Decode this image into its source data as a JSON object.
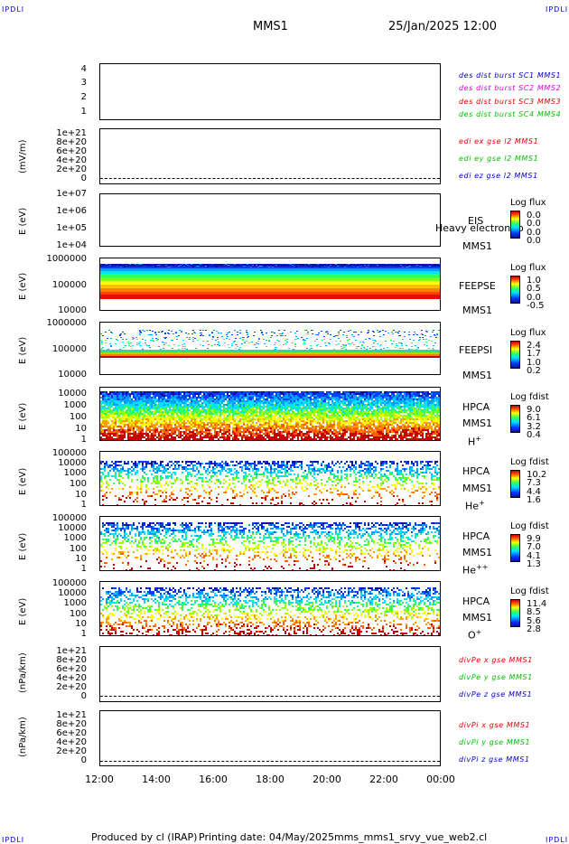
{
  "header": {
    "corner_tl": "IPDLI",
    "corner_tr": "IPDLI",
    "corner_bl": "IPDLI",
    "corner_br": "IPDLI",
    "spacecraft": "MMS1",
    "datetime": "25/Jan/2025 12:00"
  },
  "footer": {
    "produced_by": "Produced by cl (IRAP)",
    "printing_date": "Printing date: 04/May/2025",
    "script": "mms_mms1_srvy_vue_web2.cl"
  },
  "colors": {
    "blue": "#0000c8",
    "magenta": "#e000e0",
    "red": "#e00000",
    "green": "#00c000"
  },
  "chart_data": [
    {
      "type": "line",
      "panel": "burst",
      "ylabel": "",
      "yticks": [
        "4",
        "3",
        "2",
        "1"
      ],
      "ylim": [
        0.5,
        4.3
      ],
      "series": [
        {
          "name": "des dist burst SC1 MMS1",
          "values": []
        },
        {
          "name": "des dist burst SC2 MMS2",
          "values": []
        },
        {
          "name": "des dist burst SC3 MMS3",
          "values": []
        },
        {
          "name": "des dist burst SC4 MMS4",
          "values": []
        }
      ]
    },
    {
      "type": "line",
      "panel": "edi",
      "ylabel": "(mV/m)",
      "yticks": [
        "1e+21",
        "8e+20",
        "6e+20",
        "4e+20",
        "2e+20",
        "0"
      ],
      "series": [
        {
          "name": "edi ex gse l2 MMS1",
          "values": []
        },
        {
          "name": "edi ey gse l2 MMS1",
          "values": []
        },
        {
          "name": "edi ez gse l2 MMS1",
          "values": []
        }
      ]
    },
    {
      "type": "heatmap",
      "panel": "eis",
      "ylabel": "E (eV)",
      "yticks": [
        "1e+07",
        "1e+06",
        "1e+05",
        "1e+04"
      ],
      "labels": [
        "EIS",
        "Heavy electron to",
        "MMS1"
      ],
      "colorbar": {
        "title": "Log flux",
        "ticks": [
          "0.0",
          "0.0",
          "0.0",
          "0.0"
        ]
      }
    },
    {
      "type": "heatmap",
      "panel": "feepse",
      "ylabel": "E (eV)",
      "yticks": [
        "1000000",
        "100000",
        "10000"
      ],
      "labels": [
        "FEEPSE",
        "MMS1"
      ],
      "colorbar": {
        "title": "Log flux",
        "ticks": [
          "1.0",
          "0.5",
          "0.0",
          "-0.5"
        ]
      }
    },
    {
      "type": "heatmap",
      "panel": "feepsi",
      "ylabel": "E (eV)",
      "yticks": [
        "1000000",
        "100000",
        "10000"
      ],
      "labels": [
        "FEEPSI",
        "MMS1"
      ],
      "colorbar": {
        "title": "Log flux",
        "ticks": [
          "2.4",
          "1.7",
          "1.0",
          "0.2"
        ]
      }
    },
    {
      "type": "heatmap",
      "panel": "hpca-h",
      "ylabel": "E (eV)",
      "yticks": [
        "10000",
        "1000",
        "100",
        "10",
        "1"
      ],
      "labels": [
        "HPCA",
        "MMS1",
        "H",
        "+"
      ],
      "colorbar": {
        "title": "Log fdist",
        "ticks": [
          "9.0",
          "6.1",
          "3.2",
          "0.4"
        ]
      }
    },
    {
      "type": "heatmap",
      "panel": "hpca-he",
      "ylabel": "E (eV)",
      "yticks": [
        "100000",
        "10000",
        "1000",
        "100",
        "10",
        "1"
      ],
      "labels": [
        "HPCA",
        "MMS1",
        "He",
        "+"
      ],
      "colorbar": {
        "title": "Log fdist",
        "ticks": [
          "10.2",
          "7.3",
          "4.4",
          "1.6"
        ]
      }
    },
    {
      "type": "heatmap",
      "panel": "hpca-hepp",
      "ylabel": "E (eV)",
      "yticks": [
        "100000",
        "10000",
        "1000",
        "100",
        "10",
        "1"
      ],
      "labels": [
        "HPCA",
        "MMS1",
        "He",
        "++"
      ],
      "colorbar": {
        "title": "Log fdist",
        "ticks": [
          "9.9",
          "7.0",
          "4.1",
          "1.3"
        ]
      }
    },
    {
      "type": "heatmap",
      "panel": "hpca-o",
      "ylabel": "E (eV)",
      "yticks": [
        "100000",
        "10000",
        "1000",
        "100",
        "10",
        "1"
      ],
      "labels": [
        "HPCA",
        "MMS1",
        "O",
        "+"
      ],
      "colorbar": {
        "title": "Log fdist",
        "ticks": [
          "11.4",
          "8.5",
          "5.6",
          "2.8"
        ]
      }
    },
    {
      "type": "line",
      "panel": "divpe",
      "ylabel": "(nPa/km)",
      "yticks": [
        "1e+21",
        "8e+20",
        "6e+20",
        "4e+20",
        "2e+20",
        "0"
      ],
      "series": [
        {
          "name": "divPe x gse MMS1",
          "values": []
        },
        {
          "name": "divPe y gse MMS1",
          "values": []
        },
        {
          "name": "divPe z gse MMS1",
          "values": []
        }
      ]
    },
    {
      "type": "line",
      "panel": "divpi",
      "ylabel": "(nPa/km)",
      "yticks": [
        "1e+21",
        "8e+20",
        "6e+20",
        "4e+20",
        "2e+20",
        "0"
      ],
      "series": [
        {
          "name": "divPi x gse MMS1",
          "values": []
        },
        {
          "name": "divPi y gse MMS1",
          "values": []
        },
        {
          "name": "divPi z gse MMS1",
          "values": []
        }
      ]
    }
  ],
  "xaxis": {
    "ticks": [
      "12:00",
      "14:00",
      "16:00",
      "18:00",
      "20:00",
      "22:00",
      "00:00"
    ]
  }
}
